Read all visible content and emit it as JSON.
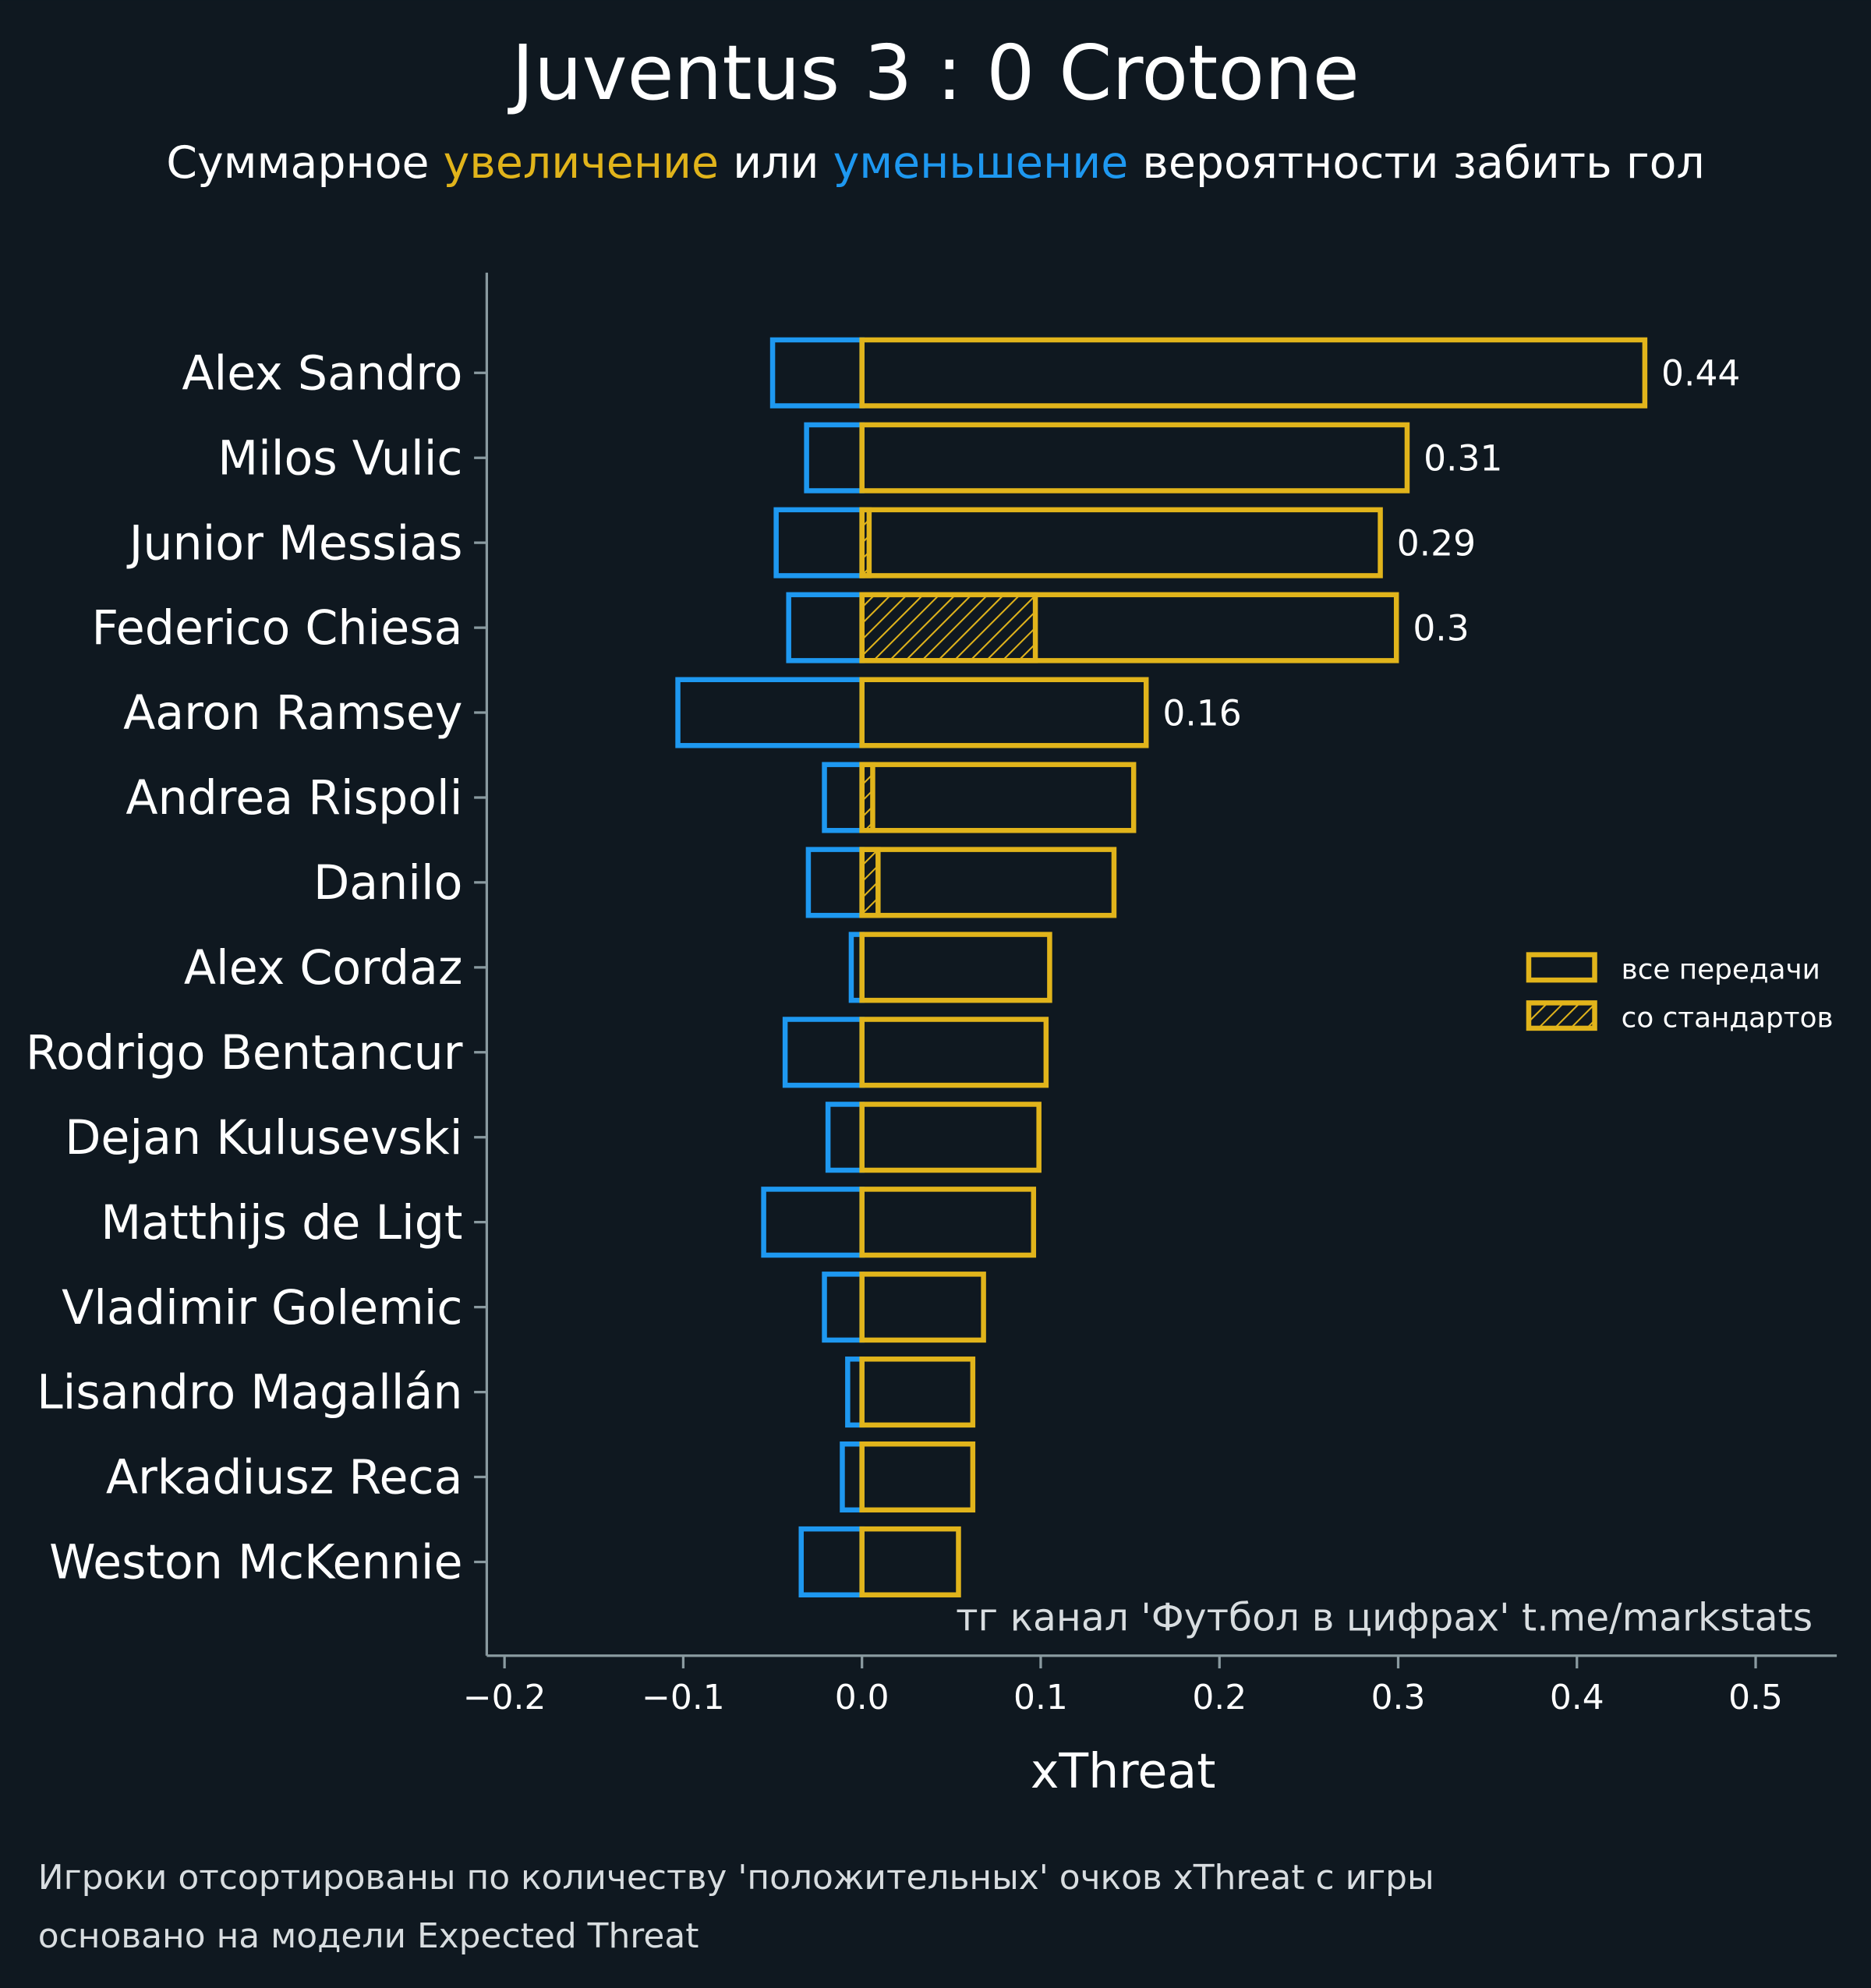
{
  "chart_data": {
    "type": "bar",
    "orientation": "horizontal",
    "title": "Juventus 3 : 0 Crotone",
    "subtitle_parts": [
      "Суммарное ",
      "увеличение",
      " или ",
      "уменьшение",
      " вероятности забить гол"
    ],
    "xlabel": "xThreat",
    "xlim": [
      -0.21,
      0.545
    ],
    "xticks": [
      -0.2,
      -0.1,
      0.0,
      0.1,
      0.2,
      0.3,
      0.4,
      0.5
    ],
    "xtick_labels": [
      "−0.2",
      "−0.1",
      "0.0",
      "0.1",
      "0.2",
      "0.3",
      "0.4",
      "0.5"
    ],
    "categories": [
      "Alex Sandro",
      "Milos Vulic",
      "Junior Messias",
      "Federico Chiesa",
      "Aaron Ramsey",
      "Andrea Rispoli",
      "Danilo",
      "Alex Cordaz",
      "Rodrigo Bentancur",
      "Dejan Kulusevski",
      "Matthijs de Ligt",
      "Vladimir Golemic",
      "Lisandro Magallán",
      "Arkadiusz Reca",
      "Weston McKennie"
    ],
    "series": [
      {
        "name": "все передачи",
        "kind": "positive",
        "color": "#e1b41b",
        "values": [
          0.438,
          0.305,
          0.29,
          0.299,
          0.159,
          0.152,
          0.141,
          0.105,
          0.103,
          0.099,
          0.096,
          0.068,
          0.062,
          0.062,
          0.054
        ]
      },
      {
        "name": "со стандартов",
        "kind": "set-pieces",
        "color": "#e1b41b",
        "hatched": true,
        "values": [
          0,
          0,
          0.004,
          0.097,
          0,
          0.006,
          0.009,
          0,
          0,
          0,
          0,
          0,
          0,
          0,
          0
        ]
      },
      {
        "name": "negative",
        "kind": "negative",
        "color": "#1e98f0",
        "values": [
          -0.05,
          -0.031,
          -0.048,
          -0.041,
          -0.103,
          -0.021,
          -0.03,
          -0.006,
          -0.043,
          -0.019,
          -0.055,
          -0.021,
          -0.008,
          -0.011,
          -0.034
        ]
      }
    ],
    "data_labels": [
      "0.44",
      "0.31",
      "0.29",
      "0.3",
      "0.16",
      "",
      "",
      "",
      "",
      "",
      "",
      "",
      "",
      "",
      ""
    ],
    "legend": {
      "position": "right",
      "entries": [
        "все передачи",
        "со стандартов"
      ]
    },
    "grid": false,
    "watermark": "тг канал 'Футбол в цифрах'  t.me/markstats",
    "footnotes": [
      "Игроки отсортированы по количеству 'положительных' очков xThreat с игры",
      "основано на модели Expected Threat"
    ],
    "colors": {
      "background": "#0f1820",
      "increase": "#e1b41b",
      "decrease": "#1e98f0",
      "axis": "#8a9aa0"
    }
  }
}
